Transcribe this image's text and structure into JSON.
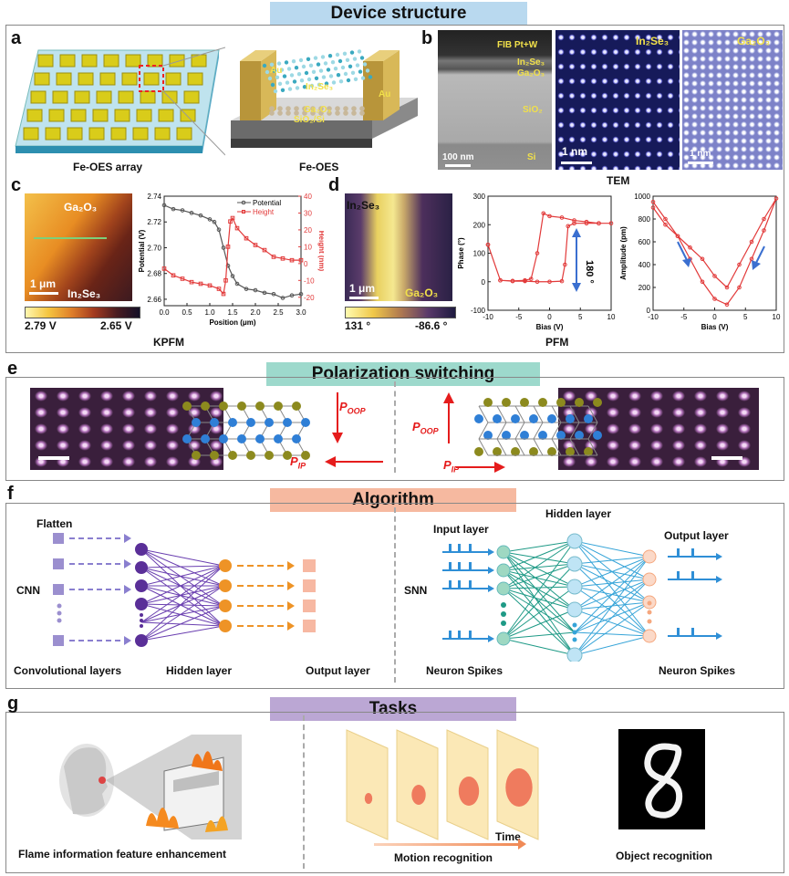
{
  "sections": {
    "device_structure": "Device structure",
    "polarization": "Polarization switching",
    "algorithm": "Algorithm",
    "tasks": "Tasks"
  },
  "panel_letters": [
    "a",
    "b",
    "c",
    "d",
    "e",
    "f",
    "g"
  ],
  "panel_a": {
    "array_caption": "Fe-OES array",
    "device_caption": "Fe-OES",
    "labels": {
      "au_left": "Au",
      "au_right": "Au",
      "in2se3": "In₂Se₃",
      "ga2o3": "Ga₂O₃",
      "substrate": "SiO₂/Si"
    }
  },
  "panel_b": {
    "caption": "TEM",
    "layers": [
      "FIB Pt+W",
      "In₂Se₃",
      "Ga₂O₃",
      "SiO₂",
      "Si"
    ],
    "scale_100nm": "100 nm",
    "scale_1nm_a": "1 nm",
    "scale_1nm_b": "1 nm",
    "img2_label": "In₂Se₃",
    "img3_label": "Ga₂O₃"
  },
  "panel_c": {
    "caption": "KPFM",
    "map_top": "Ga₂O₃",
    "map_bottom": "In₂Se₃",
    "scale": "1 μm",
    "cbar_left": "2.79 V",
    "cbar_right": "2.65 V",
    "legend_potential": "Potential",
    "legend_height": "Height",
    "xlabel": "Position (μm)",
    "ylabel_left": "Potential (V)",
    "ylabel_right": "Height (nm)"
  },
  "panel_d": {
    "caption": "PFM",
    "map_top": "In₂Se₃",
    "map_bottom": "Ga₂O₃",
    "scale": "1 μm",
    "cbar_left": "131 °",
    "cbar_right": "-86.6 °",
    "phase_ylabel": "Phase (°)",
    "phase_xlabel": "Bias (V)",
    "phase_annot": "180 °",
    "amp_ylabel": "Amplitude (pm)",
    "amp_xlabel": "Bias (V)"
  },
  "panel_e": {
    "p_oop": "POOP",
    "p_ip": "PIP"
  },
  "panel_f": {
    "flatten": "Flatten",
    "cnn": "CNN",
    "conv_layers": "Convolutional layers",
    "hidden_left": "Hidden layer",
    "output_left": "Output layer",
    "snn": "SNN",
    "input_layer": "Input layer",
    "hidden_right": "Hidden layer",
    "output_right": "Output layer",
    "spikes_left": "Neuron Spikes",
    "spikes_right": "Neuron Spikes"
  },
  "panel_g": {
    "flame": "Flame information feature enhancement",
    "motion": "Motion recognition",
    "time": "Time",
    "object": "Object recognition"
  },
  "chart_data": [
    {
      "type": "line",
      "panel": "c",
      "xlabel": "Position (μm)",
      "ylabel": "Potential (V)",
      "ylabel_right": "Height (nm)",
      "xlim": [
        0,
        3.0
      ],
      "ylim": [
        2.655,
        2.74
      ],
      "ylim_right": [
        -25,
        40
      ],
      "xticks": [
        0.0,
        0.5,
        1.0,
        1.5,
        2.0,
        2.5,
        3.0
      ],
      "yticks": [
        2.66,
        2.68,
        2.7,
        2.72,
        2.74
      ],
      "yticks_right": [
        -20,
        -10,
        0,
        10,
        20,
        30,
        40
      ],
      "legend": "top-right",
      "series": [
        {
          "name": "Potential",
          "color": "#555555",
          "axis": "left",
          "x": [
            0,
            0.2,
            0.4,
            0.6,
            0.8,
            1.0,
            1.1,
            1.2,
            1.3,
            1.4,
            1.5,
            1.6,
            1.8,
            2.0,
            2.2,
            2.4,
            2.6,
            2.8,
            3.0
          ],
          "y": [
            2.733,
            2.73,
            2.729,
            2.727,
            2.725,
            2.722,
            2.72,
            2.714,
            2.7,
            2.686,
            2.678,
            2.672,
            2.668,
            2.667,
            2.665,
            2.664,
            2.661,
            2.663,
            2.664
          ]
        },
        {
          "name": "Height",
          "color": "#e23a3a",
          "axis": "right",
          "x": [
            0,
            0.2,
            0.4,
            0.6,
            0.8,
            1.0,
            1.2,
            1.3,
            1.35,
            1.4,
            1.45,
            1.5,
            1.6,
            1.8,
            2.0,
            2.2,
            2.4,
            2.6,
            2.8,
            3.0
          ],
          "y": [
            -3,
            -7,
            -9,
            -11,
            -12,
            -13,
            -15,
            -18,
            -10,
            10,
            25,
            27,
            21,
            15,
            11,
            8,
            4,
            3,
            2,
            2
          ]
        }
      ]
    },
    {
      "type": "line",
      "panel": "d-phase",
      "xlabel": "Bias (V)",
      "ylabel": "Phase (°)",
      "xlim": [
        -10,
        10
      ],
      "ylim": [
        -100,
        300
      ],
      "xticks": [
        -10,
        -5,
        0,
        5,
        10
      ],
      "yticks": [
        -100,
        0,
        100,
        200,
        300
      ],
      "series": [
        {
          "name": "",
          "color": "#e23a3a",
          "x": [
            -10,
            -8,
            -6,
            -4,
            -2,
            0,
            2,
            2.5,
            3,
            4,
            6,
            8,
            10,
            8,
            6,
            4,
            2,
            0,
            -1,
            -2,
            -3,
            -4,
            -6,
            -8,
            -10
          ],
          "y": [
            130,
            5,
            2,
            2,
            0,
            0,
            2,
            60,
            195,
            205,
            205,
            205,
            205,
            205,
            210,
            215,
            225,
            230,
            240,
            100,
            10,
            5,
            3,
            5,
            130
          ]
        }
      ]
    },
    {
      "type": "line",
      "panel": "d-amplitude",
      "xlabel": "Bias (V)",
      "ylabel": "Amplitude (pm)",
      "xlim": [
        -10,
        10
      ],
      "ylim": [
        0,
        1000
      ],
      "xticks": [
        -10,
        -5,
        0,
        5,
        10
      ],
      "yticks": [
        0,
        200,
        400,
        600,
        800,
        1000
      ],
      "series": [
        {
          "name": "",
          "color": "#e23a3a",
          "x": [
            -10,
            -8,
            -6,
            -4,
            -2,
            0,
            2,
            4,
            6,
            8,
            10,
            8,
            6,
            4,
            2,
            0,
            -2,
            -4,
            -6,
            -8,
            -10
          ],
          "y": [
            950,
            800,
            650,
            450,
            250,
            100,
            50,
            200,
            450,
            700,
            980,
            800,
            600,
            400,
            200,
            300,
            450,
            550,
            650,
            750,
            900
          ]
        }
      ]
    }
  ]
}
